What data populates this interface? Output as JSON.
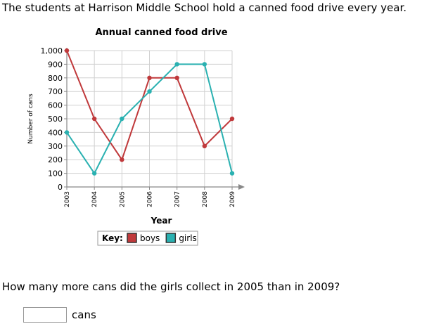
{
  "intro_text": "The students at Harrison Middle School hold a canned food drive every year.",
  "question_text": "How many more cans did the girls collect in 2005 than in 2009?",
  "answer": {
    "value": "",
    "unit": "cans"
  },
  "chart_data": {
    "type": "line",
    "title": "Annual canned food drive",
    "xlabel": "Year",
    "ylabel": "Number of cans",
    "categories": [
      "2003",
      "2004",
      "2005",
      "2006",
      "2007",
      "2008",
      "2009"
    ],
    "ylim": [
      0,
      1000
    ],
    "yticks": [
      0,
      100,
      200,
      300,
      400,
      500,
      600,
      700,
      800,
      900,
      1000
    ],
    "ytick_labels": [
      "0",
      "100",
      "200",
      "300",
      "400",
      "500",
      "600",
      "700",
      "800",
      "900",
      "1,000"
    ],
    "grid": true,
    "key_label": "Key:",
    "series": [
      {
        "name": "boys",
        "color": "#c0393b",
        "values": [
          1000,
          500,
          200,
          800,
          800,
          300,
          500
        ]
      },
      {
        "name": "girls",
        "color": "#2ab1b1",
        "values": [
          400,
          100,
          500,
          700,
          900,
          900,
          100
        ]
      }
    ]
  }
}
